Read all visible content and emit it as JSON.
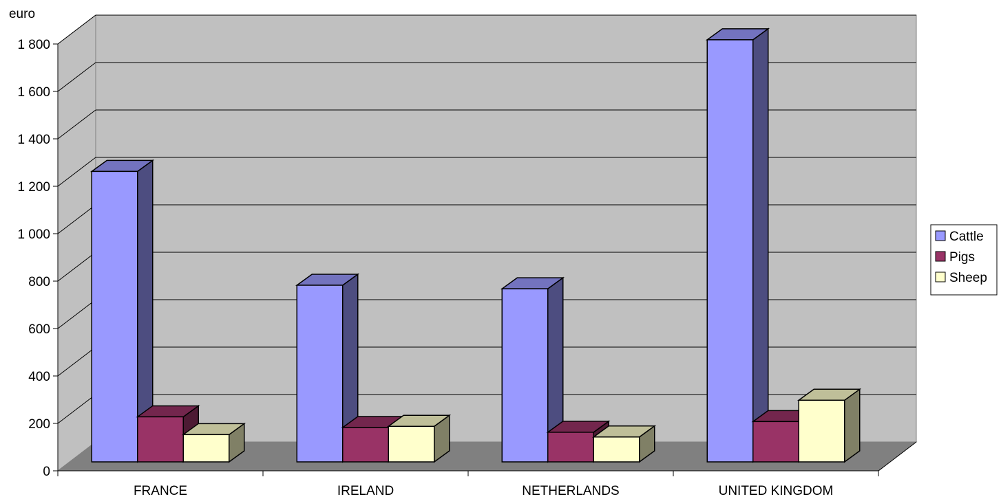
{
  "chart_data": {
    "type": "bar",
    "ylabel": "euro",
    "xlabel": "",
    "title": "",
    "categories": [
      "FRANCE",
      "IRELAND",
      "NETHERLANDS",
      "UNITED KINGDOM"
    ],
    "series": [
      {
        "name": "Cattle",
        "values": [
          1225,
          745,
          730,
          1780
        ],
        "color": "#9999ff"
      },
      {
        "name": "Pigs",
        "values": [
          190,
          145,
          125,
          170
        ],
        "color": "#993366"
      },
      {
        "name": "Sheep",
        "values": [
          115,
          150,
          105,
          260
        ],
        "color": "#ffffcc"
      }
    ],
    "ylim": [
      0,
      1800
    ],
    "yticks": [
      0,
      200,
      400,
      600,
      800,
      1000,
      1200,
      1400,
      1600,
      1800
    ],
    "ytick_labels": [
      "0",
      "200",
      "400",
      "600",
      "800",
      "1 000",
      "1 200",
      "1 400",
      "1 600",
      "1 800"
    ],
    "grid": true,
    "legend_position": "right",
    "style": "3d"
  }
}
